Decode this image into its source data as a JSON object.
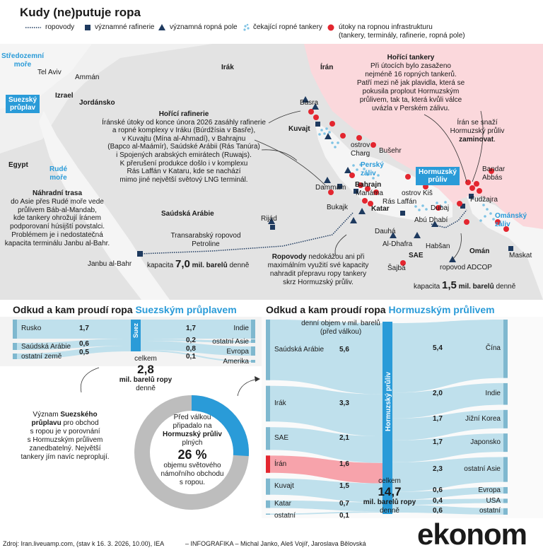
{
  "title": "Kudy (ne)putuje ropa",
  "legend": {
    "pipelines": "ropovody",
    "refineries": "významné rafinerie",
    "oilfields": "významná ropná pole",
    "tankers": "čekající ropné tankery",
    "attacks_1": "útoky na ropnou infrastrukturu",
    "attacks_2": "(tankery, terminály, rafinerie, ropná pole)"
  },
  "map": {
    "seas": {
      "med_1": "Středozemní",
      "med_2": "moře",
      "red_1": "Rudé",
      "red_2": "moře",
      "gulf_1": "Perský",
      "gulf_2": "záliv",
      "oman_1": "Ománský",
      "oman_2": "záliv"
    },
    "suez_box_1": "Suezský",
    "suez_box_2": "průplav",
    "hormuz_box_1": "Hormuzský",
    "hormuz_box_2": "průliv",
    "countries": {
      "iraq": "Irák",
      "iran": "Írán",
      "israel": "Izrael",
      "jordan": "Jordánsko",
      "egypt": "Egypt",
      "saudi": "Saúdská Arábie",
      "kuwait": "Kuvajt",
      "bahrain": "Bahrajn",
      "qatar": "Katar",
      "uae": "SAE",
      "oman": "Omán"
    },
    "cities": {
      "telaviv": "Tel Aviv",
      "amman": "Ammán",
      "basra": "Basra",
      "kharg_1": "ostrov",
      "kharg_2": "Charg",
      "bushehr": "Bušehr",
      "dammam": "Dammám",
      "manama": "Manáma",
      "ras_laffan": "Rás Laffán",
      "kish": "ostrov Kiš",
      "dubai": "Dubaj",
      "abu_dhabi": "Abú Dhabí",
      "fujairah": "Fudžajra",
      "bandar_1": "Bandar",
      "bandar_2": "Abbás",
      "muscat": "Maskat",
      "doha": "Dauhá",
      "aldhafra": "Al-Dhafra",
      "habshan": "Habšan",
      "shajba": "Šajbá",
      "bukajk": "Bukajk",
      "riyadh": "Rijád",
      "janbu": "Janbu al-Bahr"
    },
    "burning_tankers": {
      "title": "Hořící tankery",
      "lines": [
        "Při útocích bylo zasaženo",
        "nejméně 16 ropných tankerů.",
        "Patří mezi ně jak plavidla, která se",
        "pokusila proplout Hormuzským",
        "průlivem, tak ta, která kvůli válce",
        "uvázla v Perském zálivu."
      ]
    },
    "iran_close": {
      "lines": [
        "Írán se snaží",
        "Hormuzský průliv"
      ],
      "bold": "zaminovat",
      "end": "."
    },
    "burning_refineries": {
      "title": "Hořící rafinerie",
      "lines": [
        "Íránské útoky od konce února 2026 zasáhly rafinerie",
        "a ropné komplexy v Iráku (Búrdžísia v Basře),",
        "v Kuvajtu (Mína al-Ahmadí), v Bahrajnu",
        "(Bapco al-Maámír), Saúdské Arábii (Rás Tanúra)",
        "i Spojených arabských emirátech (Ruwajs).",
        "K přerušení produkce došlo i v komplexu",
        "Rás Laffán v Kataru, kde se nachází",
        "mimo jiné největší světový LNG terminál."
      ]
    },
    "alt_route": {
      "title": "Náhradní trasa",
      "lines": [
        "do Asie přes Rudé moře vede",
        "průlivem Báb-al-Mandab,",
        "kde tankery ohrožují íránem",
        "podporovaní húsijští povstalci.",
        "Problémem je i nedostatečná",
        "kapacita terminálu Janbu al-Bahr."
      ]
    },
    "petroline": {
      "l1": "Transarabský ropovod",
      "l2": "Petroline"
    },
    "cap_west": {
      "pre": "kapacita",
      "num": "7,0",
      "unit": "mil. barelů",
      "post": "denně"
    },
    "pipelines_note": {
      "bold": "Ropovody",
      "l1": " nedokážou ani při",
      "lines": [
        "maximálním využití své kapacity",
        "nahradit přepravu ropy tankery",
        "skrz Hormuzský průliv."
      ]
    },
    "adcop": "ropovod ADCOP",
    "cap_east": {
      "pre": "kapacita",
      "num": "1,5",
      "unit": "mil. barelů",
      "post": "denně"
    }
  },
  "suez": {
    "title_a": "Odkud a kam proudí ropa ",
    "title_b": "Suezským průplavem",
    "channel": "Suez",
    "sources": [
      {
        "name": "Rusko",
        "value": "1,7"
      },
      {
        "name": "Saúdská Arábie",
        "value": "0,6"
      },
      {
        "name": "ostatní země",
        "value": "0,5"
      }
    ],
    "dests": [
      {
        "name": "Indie",
        "value": "1,7"
      },
      {
        "name": "ostatní Asie",
        "value": "0,2"
      },
      {
        "name": "Evropa",
        "value": "0,8"
      },
      {
        "name": "Amerika",
        "value": "0,1"
      }
    ],
    "total": {
      "pre": "celkem",
      "num": "2,8",
      "unit": "mil. barelů ropy",
      "post": "denně"
    },
    "note": {
      "pre": "Význam ",
      "bold_1": "Suezského",
      "bold_2": "průplavu",
      "lines": [
        " pro obchod",
        "s ropou je v porovnání",
        "s Hormuzským průlivem",
        "zanedbatelný. Největší",
        "tankery jím navíc neproplují."
      ]
    }
  },
  "donut": {
    "share": 0.26,
    "l1": "Před válkou",
    "l2": "připadalo na",
    "bold": "Hormuzský průliv",
    "l3": "plných",
    "pct": "26 %",
    "l4": "objemu světového",
    "l5": "námořního obchodu",
    "l6": "s ropou."
  },
  "hormuz": {
    "title_a": "Odkud a kam proudí ropa ",
    "title_b": "Hormuzským průlivem",
    "channel": "Hormuzský průliv",
    "note_1": "denní objem v mil. barelů",
    "note_2": "(před válkou)",
    "sources": [
      {
        "name": "Saúdská Arábie",
        "value": "5,6"
      },
      {
        "name": "Irák",
        "value": "3,3"
      },
      {
        "name": "SAE",
        "value": "2,1"
      },
      {
        "name": "Írán",
        "value": "1,6"
      },
      {
        "name": "Kuvajt",
        "value": "1,5"
      },
      {
        "name": "Katar",
        "value": "0,7"
      },
      {
        "name": "ostatní",
        "value": "0,1"
      }
    ],
    "dests": [
      {
        "name": "Čína",
        "value": "5,4"
      },
      {
        "name": "Indie",
        "value": "2,0"
      },
      {
        "name": "Jižní Korea",
        "value": "1,7"
      },
      {
        "name": "Japonsko",
        "value": "1,7"
      },
      {
        "name": "ostatní Asie",
        "value": "2,3"
      },
      {
        "name": "Evropa",
        "value": "0,6"
      },
      {
        "name": "USA",
        "value": "0,4"
      },
      {
        "name": "ostatní",
        "value": "0,6"
      }
    ],
    "total": {
      "pre": "celkem",
      "num": "14,7",
      "unit": "mil. barelů ropy",
      "post": "denně"
    }
  },
  "footer": {
    "source": "Zdroj: Iran.liveuamp.com, (stav k 16. 3. 2026, 10.00), IEA",
    "credits": "– INFOGRAFIKA – Michal Janko, Aleš Vojíř, Jaroslava Bělovská",
    "logo": "ekonom"
  },
  "colors": {
    "accent": "#2a9bd8",
    "sea": "#f2f2f2",
    "land": "#e2e2e2",
    "iran": "#fbd8dc",
    "flow": "#bfe0ec",
    "attack": "#e3262f",
    "dark": "#1e3a5f"
  }
}
